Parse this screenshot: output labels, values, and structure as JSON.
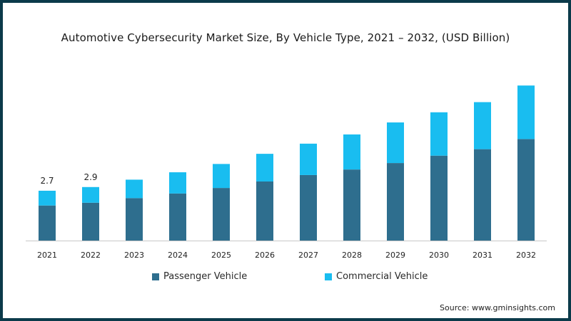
{
  "chart_data": {
    "type": "bar",
    "stacked": true,
    "title": "Automotive Cybersecurity Market Size, By Vehicle Type, 2021 – 2032, (USD Billion)",
    "categories": [
      "2021",
      "2022",
      "2023",
      "2024",
      "2025",
      "2026",
      "2027",
      "2028",
      "2029",
      "2030",
      "2031",
      "2032"
    ],
    "series": [
      {
        "name": "Passenger Vehicle",
        "color": "#2e6e8e",
        "values": [
          1.9,
          2.05,
          2.3,
          2.55,
          2.85,
          3.2,
          3.55,
          3.85,
          4.2,
          4.6,
          4.95,
          5.5
        ]
      },
      {
        "name": "Commercial Vehicle",
        "color": "#19bdf0",
        "values": [
          0.8,
          0.85,
          1.0,
          1.15,
          1.3,
          1.5,
          1.7,
          1.9,
          2.2,
          2.35,
          2.55,
          2.9
        ]
      }
    ],
    "data_labels": [
      {
        "category": "2021",
        "text": "2.7"
      },
      {
        "category": "2022",
        "text": "2.9"
      }
    ],
    "ylim": [
      0,
      9.1
    ],
    "grid": false,
    "legend_position": "bottom"
  },
  "source": "Source: www.gminsights.com"
}
